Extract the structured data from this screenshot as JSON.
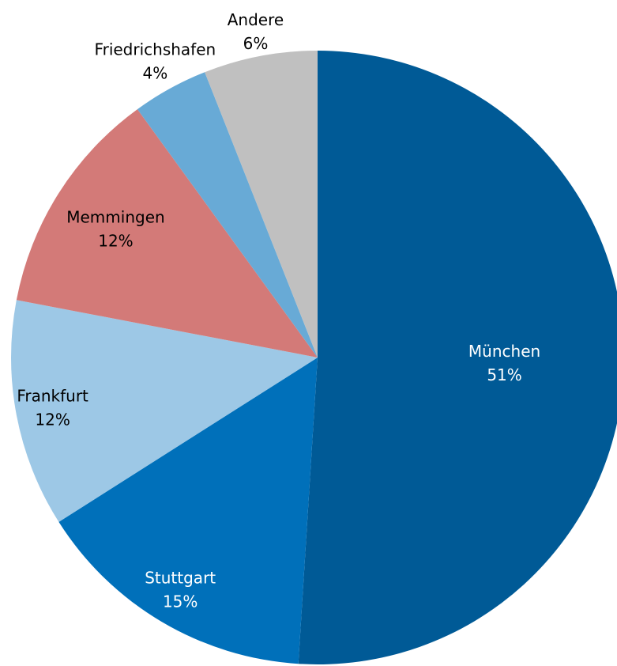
{
  "chart_data": {
    "type": "pie",
    "categories": [
      "München",
      "Stuttgart",
      "Frankfurt",
      "Memmingen",
      "Friedrichshafen",
      "Andere"
    ],
    "values": [
      51,
      15,
      12,
      12,
      4,
      6
    ],
    "value_labels": [
      "51%",
      "15%",
      "12%",
      "12%",
      "4%",
      "6%"
    ],
    "colors": [
      "#005a96",
      "#0070ba",
      "#9dc8e6",
      "#d37a78",
      "#68aad6",
      "#c0c0c0"
    ]
  }
}
